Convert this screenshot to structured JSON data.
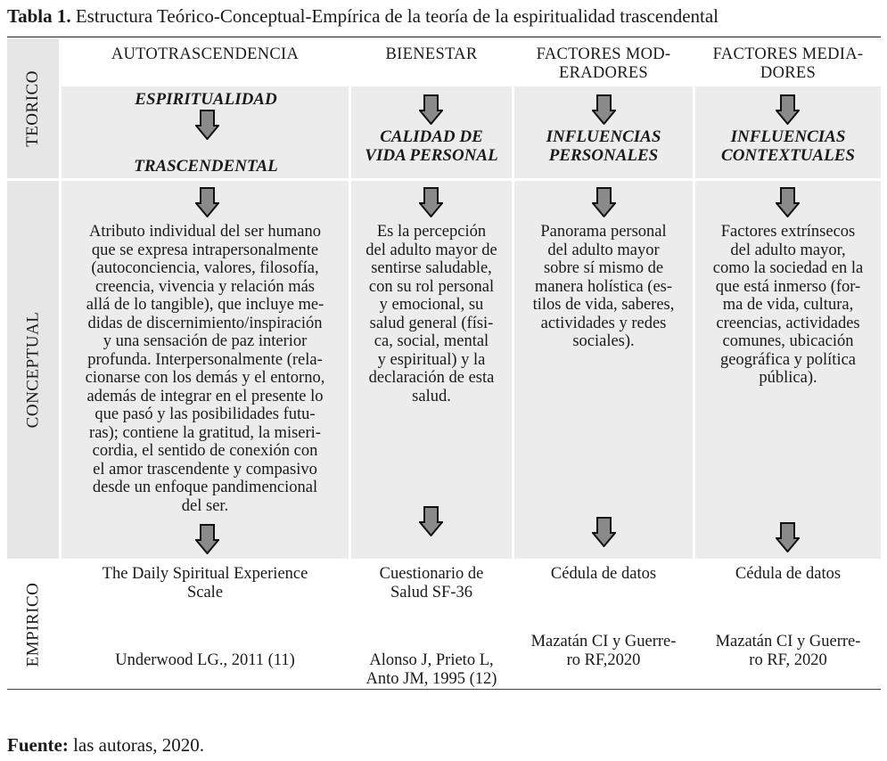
{
  "caption": {
    "number": "Tabla 1.",
    "title": "Estructura Teórico-Conceptual-Empírica de la teoría de la espiritualidad trascendental"
  },
  "rows": {
    "teorico": "TEORICO",
    "conceptual": "CONCEPTUAL",
    "empirico": "EMPIRICO"
  },
  "columns": [
    {
      "header": [
        "AUTOTRASCENDENCIA"
      ],
      "concept": [
        "ESPIRITUALIDAD",
        "TRASCENDENTAL"
      ],
      "definition": [
        "Atributo individual del ser humano",
        "que se expresa intrapersonalmente",
        "(autoconciencia, valores, filosofía,",
        "creencia, vivencia y relación más",
        "allá de lo tangible), que incluye me-",
        "didas de discernimiento/inspiración",
        "y una sensación de paz interior",
        "profunda. Interpersonalmente (rela-",
        "cionarse con los demás y el entorno,",
        "además de integrar en el presente lo",
        "que pasó y las posibilidades futu-",
        "ras); contiene la gratitud, la miseri-",
        "cordia, el sentido de conexión con",
        "el amor trascendente y compasivo",
        "desde un enfoque pandimencional",
        "del ser."
      ],
      "instrument": [
        "The Daily Spiritual Experience",
        "Scale"
      ],
      "reference": [
        "Underwood LG., 2011 (11)"
      ]
    },
    {
      "header": [
        "BIENESTAR"
      ],
      "concept": [
        "CALIDAD DE",
        "VIDA PERSONAL"
      ],
      "definition": [
        "Es la percepción",
        "del adulto mayor de",
        "sentirse saludable,",
        "con su rol personal",
        "y emocional, su",
        "salud general (físi-",
        "ca, social, mental",
        "y espiritual) y la",
        "declaración de esta",
        "salud."
      ],
      "instrument": [
        "Cuestionario de",
        "Salud SF-36"
      ],
      "reference": [
        "Alonso J, Prieto L,",
        "Anto JM, 1995 (12)"
      ]
    },
    {
      "header": [
        "FACTORES MOD-",
        "ERADORES"
      ],
      "concept": [
        "INFLUENCIAS",
        "PERSONALES"
      ],
      "definition": [
        "Panorama personal",
        "del adulto mayor",
        "sobre sí mismo de",
        "manera holística (es-",
        "tilos de vida, saberes,",
        "actividades y redes",
        "sociales)."
      ],
      "instrument": [
        "Cédula de datos"
      ],
      "reference": [
        "Mazatán CI y Guerre-",
        "ro RF,2020"
      ]
    },
    {
      "header": [
        "FACTORES MEDIA-",
        "DORES"
      ],
      "concept": [
        "INFLUENCIAS",
        "CONTEXTUALES"
      ],
      "definition": [
        "Factores extrínsecos",
        "del adulto mayor,",
        "como la sociedad en la",
        "que está inmerso (for-",
        "ma de vida, cultura,",
        "creencias, actividades",
        "comunes, ubicación",
        "geográfica y política",
        "pública)."
      ],
      "instrument": [
        "Cédula de datos"
      ],
      "reference": [
        "Mazatán CI y Guerre-",
        "ro RF, 2020"
      ]
    }
  ],
  "footer": {
    "label": "Fuente:",
    "text": "las autoras, 2020."
  },
  "icons": {
    "arrow": "down-arrow-icon",
    "arrow_fill": "#8a8a8a",
    "arrow_stroke": "#111111"
  }
}
